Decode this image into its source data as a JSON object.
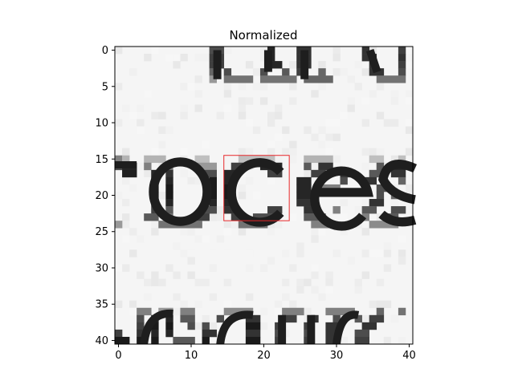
{
  "chart_data": {
    "type": "heatmap",
    "title": "Normalized",
    "xlabel": "",
    "ylabel": "",
    "xlim": [
      -0.5,
      40.5
    ],
    "ylim": [
      40.5,
      -0.5
    ],
    "x_ticks": [
      0,
      10,
      20,
      30,
      40
    ],
    "y_ticks": [
      0,
      5,
      10,
      15,
      20,
      25,
      30,
      35,
      40
    ],
    "x_tick_labels": [
      "0",
      "10",
      "20",
      "30",
      "40"
    ],
    "y_tick_labels": [
      "0",
      "5",
      "10",
      "15",
      "20",
      "25",
      "30",
      "35",
      "40"
    ],
    "colormap": "gray",
    "background_value": 0.96,
    "image_description_glyphs": [
      "o",
      "c",
      "e",
      "s"
    ],
    "highlight_box": {
      "x_range": [
        15,
        24
      ],
      "y_range": [
        15,
        24
      ],
      "color": "#e8282b"
    },
    "dark_pixel_runs": [
      {
        "row": 0,
        "segments": [
          [
            13,
            15,
            0.3
          ],
          [
            21,
            22,
            0.15
          ],
          [
            25,
            27,
            0.2
          ],
          [
            34,
            35,
            0.2
          ],
          [
            39,
            40,
            0.25
          ]
        ]
      },
      {
        "row": 1,
        "segments": [
          [
            13,
            15,
            0.25
          ],
          [
            21,
            22,
            0.15
          ],
          [
            25,
            27,
            0.2
          ],
          [
            34,
            36,
            0.2
          ],
          [
            39,
            40,
            0.2
          ]
        ]
      },
      {
        "row": 2,
        "segments": [
          [
            13,
            15,
            0.25
          ],
          [
            21,
            23,
            0.15
          ],
          [
            25,
            27,
            0.2
          ],
          [
            35,
            36,
            0.2
          ],
          [
            39,
            40,
            0.25
          ]
        ]
      },
      {
        "row": 3,
        "segments": [
          [
            13,
            14,
            0.4
          ],
          [
            15,
            16,
            0.3
          ],
          [
            20,
            21,
            0.3
          ],
          [
            23,
            24,
            0.35
          ],
          [
            25,
            26,
            0.25
          ],
          [
            28,
            29,
            0.4
          ],
          [
            35,
            37,
            0.2
          ],
          [
            39,
            40,
            0.3
          ]
        ]
      },
      {
        "row": 4,
        "segments": [
          [
            13,
            14,
            0.6
          ],
          [
            15,
            19,
            0.45
          ],
          [
            20,
            25,
            0.45
          ],
          [
            26,
            30,
            0.4
          ],
          [
            36,
            40,
            0.45
          ]
        ]
      },
      {
        "row": 15,
        "segments": [
          [
            0,
            1,
            0.5
          ],
          [
            1,
            2,
            0.7
          ],
          [
            4,
            7,
            0.7
          ],
          [
            11,
            13,
            0.75
          ],
          [
            17,
            22,
            0.75
          ],
          [
            26,
            30,
            0.7
          ],
          [
            35,
            37,
            0.75
          ],
          [
            39,
            40,
            0.75
          ]
        ]
      },
      {
        "row": 16,
        "segments": [
          [
            0,
            1,
            0.3
          ],
          [
            1,
            3,
            0.15
          ],
          [
            4,
            5,
            0.5
          ],
          [
            7,
            8,
            0.5
          ],
          [
            11,
            14,
            0.6
          ],
          [
            16,
            18,
            0.25
          ],
          [
            20,
            23,
            0.15
          ],
          [
            26,
            27,
            0.35
          ],
          [
            28,
            30,
            0.2
          ],
          [
            36,
            37,
            0.35
          ],
          [
            38,
            40,
            0.15
          ]
        ]
      },
      {
        "row": 17,
        "segments": [
          [
            1,
            3,
            0.12
          ],
          [
            5,
            6,
            0.15
          ],
          [
            7,
            8,
            0.2
          ],
          [
            12,
            14,
            0.3
          ],
          [
            15,
            17,
            0.15
          ],
          [
            21,
            23,
            0.25
          ],
          [
            27,
            29,
            0.25
          ],
          [
            31,
            33,
            0.2
          ],
          [
            35,
            37,
            0.35
          ],
          [
            38,
            40,
            0.2
          ]
        ]
      },
      {
        "row": 18,
        "segments": [
          [
            5,
            6,
            0.1
          ],
          [
            7,
            8,
            0.15
          ],
          [
            13,
            14,
            0.1
          ],
          [
            15,
            16,
            0.15
          ],
          [
            25,
            27,
            0.15
          ],
          [
            31,
            32,
            0.3
          ],
          [
            34,
            36,
            0.2
          ],
          [
            39,
            40,
            0.4
          ]
        ]
      },
      {
        "row": 19,
        "segments": [
          [
            5,
            6,
            0.1
          ],
          [
            7,
            8,
            0.1
          ],
          [
            13,
            14,
            0.1
          ],
          [
            15,
            16,
            0.1
          ],
          [
            25,
            27,
            0.15
          ],
          [
            28,
            31,
            0.5
          ],
          [
            34,
            35,
            0.55
          ],
          [
            36,
            38,
            0.3
          ]
        ]
      },
      {
        "row": 20,
        "segments": [
          [
            5,
            6,
            0.1
          ],
          [
            7,
            8,
            0.1
          ],
          [
            13,
            14,
            0.1
          ],
          [
            15,
            16,
            0.1
          ],
          [
            25,
            27,
            0.15
          ],
          [
            36,
            37,
            0.3
          ],
          [
            38,
            39,
            0.4
          ]
        ]
      },
      {
        "row": 21,
        "segments": [
          [
            5,
            6,
            0.15
          ],
          [
            7,
            8,
            0.15
          ],
          [
            13,
            14,
            0.15
          ],
          [
            15,
            16,
            0.15
          ],
          [
            25,
            27,
            0.2
          ],
          [
            35,
            37,
            0.2
          ]
        ]
      },
      {
        "row": 22,
        "segments": [
          [
            5,
            6,
            0.25
          ],
          [
            7,
            8,
            0.35
          ],
          [
            12,
            14,
            0.3
          ],
          [
            15,
            17,
            0.2
          ],
          [
            21,
            23,
            0.25
          ],
          [
            26,
            28,
            0.2
          ],
          [
            30,
            31,
            0.5
          ],
          [
            34,
            36,
            0.35
          ],
          [
            38,
            40,
            0.3
          ]
        ]
      },
      {
        "row": 23,
        "segments": [
          [
            4,
            6,
            0.35
          ],
          [
            7,
            8,
            0.45
          ],
          [
            11,
            13,
            0.25
          ],
          [
            16,
            18,
            0.25
          ],
          [
            19,
            22,
            0.3
          ],
          [
            26,
            29,
            0.35
          ],
          [
            34,
            35,
            0.5
          ],
          [
            37,
            39,
            0.35
          ]
        ]
      },
      {
        "row": 24,
        "segments": [
          [
            0,
            1,
            0.6
          ],
          [
            6,
            12,
            0.45
          ],
          [
            17,
            21,
            0.45
          ],
          [
            27,
            30,
            0.5
          ],
          [
            35,
            39,
            0.55
          ]
        ]
      },
      {
        "row": 36,
        "segments": [
          [
            3,
            5,
            0.5
          ],
          [
            6,
            8,
            0.6
          ],
          [
            9,
            11,
            0.5
          ],
          [
            15,
            19,
            0.55
          ],
          [
            23,
            26,
            0.5
          ],
          [
            29,
            33,
            0.5
          ],
          [
            36,
            37,
            0.4
          ],
          [
            39,
            40,
            0.45
          ]
        ]
      },
      {
        "row": 37,
        "segments": [
          [
            3,
            4,
            0.3
          ],
          [
            5,
            6,
            0.15
          ],
          [
            7,
            8,
            0.15
          ],
          [
            9,
            11,
            0.35
          ],
          [
            14,
            15,
            0.3
          ],
          [
            18,
            20,
            0.2
          ],
          [
            23,
            25,
            0.25
          ],
          [
            27,
            28,
            0.2
          ],
          [
            30,
            31,
            0.3
          ],
          [
            33,
            34,
            0.35
          ],
          [
            35,
            37,
            0.25
          ]
        ]
      },
      {
        "row": 38,
        "segments": [
          [
            3,
            4,
            0.25
          ],
          [
            5,
            6,
            0.1
          ],
          [
            7,
            8,
            0.1
          ],
          [
            10,
            11,
            0.3
          ],
          [
            12,
            13,
            0.3
          ],
          [
            18,
            20,
            0.1
          ],
          [
            22,
            23,
            0.25
          ],
          [
            26,
            27,
            0.25
          ],
          [
            29,
            31,
            0.2
          ],
          [
            34,
            36,
            0.2
          ]
        ]
      },
      {
        "row": 39,
        "segments": [
          [
            0,
            1,
            0.25
          ],
          [
            3,
            4,
            0.2
          ],
          [
            5,
            6,
            0.15
          ],
          [
            7,
            8,
            0.15
          ],
          [
            12,
            14,
            0.2
          ],
          [
            18,
            20,
            0.2
          ],
          [
            22,
            23,
            0.3
          ],
          [
            26,
            27,
            0.3
          ],
          [
            29,
            31,
            0.2
          ],
          [
            33,
            35,
            0.3
          ]
        ]
      },
      {
        "row": 40,
        "segments": [
          [
            0,
            2,
            0.1
          ],
          [
            3,
            4,
            0.1
          ],
          [
            5,
            6,
            0.1
          ],
          [
            8,
            11,
            0.35
          ],
          [
            12,
            13,
            0.1
          ],
          [
            18,
            20,
            0.1
          ],
          [
            22,
            23,
            0.25
          ],
          [
            26,
            27,
            0.25
          ],
          [
            29,
            31,
            0.2
          ],
          [
            33,
            35,
            0.25
          ]
        ]
      }
    ]
  }
}
